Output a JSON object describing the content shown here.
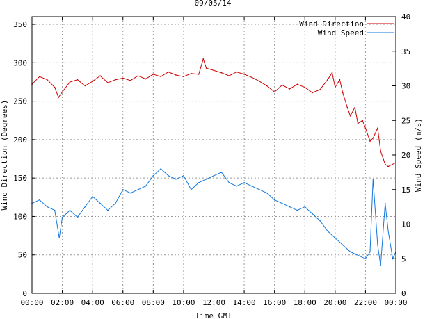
{
  "chart_data": {
    "type": "line",
    "title": "09/05/14",
    "xlabel": "Time GMT",
    "ylabel_left": "Wind Direction (Degrees)",
    "ylabel_right": "Wind Speed (m/s)",
    "xlim": [
      0,
      24
    ],
    "ylim_left": [
      0,
      360
    ],
    "ylim_right": [
      0,
      40
    ],
    "grid": true,
    "legend_position": "top-right",
    "x_ticks": [
      0,
      2,
      4,
      6,
      8,
      10,
      12,
      14,
      16,
      18,
      20,
      22,
      24
    ],
    "x_tick_labels": [
      "00:00",
      "02:00",
      "04:00",
      "06:00",
      "08:00",
      "10:00",
      "12:00",
      "14:00",
      "16:00",
      "18:00",
      "20:00",
      "22:00",
      "00:00"
    ],
    "y_ticks_left": [
      0,
      50,
      100,
      150,
      200,
      250,
      300,
      350
    ],
    "y_ticks_right": [
      0,
      5,
      10,
      15,
      20,
      25,
      30,
      35,
      40
    ],
    "series": [
      {
        "name": "Wind Direction",
        "axis": "left",
        "color": "#cc0000",
        "x": [
          0,
          0.5,
          1,
          1.5,
          1.75,
          2,
          2.5,
          3,
          3.5,
          4,
          4.5,
          5,
          5.5,
          6,
          6.5,
          7,
          7.5,
          8,
          8.5,
          9,
          9.5,
          10,
          10.5,
          11,
          11.3,
          11.5,
          12,
          12.5,
          13,
          13.5,
          14,
          14.5,
          15,
          15.5,
          16,
          16.5,
          17,
          17.5,
          18,
          18.5,
          19,
          19.5,
          19.8,
          20,
          20.3,
          20.5,
          20.8,
          21,
          21.3,
          21.5,
          21.8,
          22,
          22.3,
          22.5,
          22.8,
          23,
          23.3,
          23.5,
          24
        ],
        "values": [
          272,
          282,
          278,
          268,
          255,
          262,
          275,
          278,
          270,
          276,
          283,
          274,
          278,
          280,
          277,
          283,
          279,
          285,
          282,
          288,
          284,
          282,
          286,
          285,
          305,
          293,
          290,
          287,
          283,
          288,
          285,
          281,
          276,
          270,
          262,
          271,
          266,
          272,
          268,
          261,
          265,
          278,
          287,
          268,
          278,
          261,
          242,
          231,
          242,
          221,
          225,
          215,
          198,
          202,
          215,
          185,
          168,
          165,
          170
        ]
      },
      {
        "name": "Wind Speed",
        "axis": "right",
        "color": "#1177dd",
        "x": [
          0,
          0.5,
          1,
          1.5,
          1.8,
          2,
          2.5,
          3,
          3.5,
          4,
          4.5,
          5,
          5.5,
          6,
          6.5,
          7,
          7.5,
          8,
          8.5,
          9,
          9.5,
          10,
          10.5,
          11,
          11.5,
          12,
          12.5,
          13,
          13.5,
          14,
          14.5,
          15,
          15.5,
          16,
          16.5,
          17,
          17.5,
          18,
          18.5,
          19,
          19.5,
          20,
          20.5,
          21,
          21.5,
          22,
          22.3,
          22.5,
          22.8,
          23,
          23.3,
          23.5,
          23.8,
          24
        ],
        "values": [
          13,
          13.5,
          12.5,
          12,
          8,
          11,
          12,
          11,
          12.5,
          14,
          13,
          12,
          13,
          15,
          14.5,
          15,
          15.5,
          17,
          18,
          17,
          16.5,
          17,
          15,
          16,
          16.5,
          17,
          17.5,
          16,
          15.5,
          16,
          15.5,
          15,
          14.5,
          13.5,
          13,
          12.5,
          12,
          12.5,
          11.5,
          10.5,
          9,
          8,
          7,
          6,
          5.5,
          5,
          6,
          16.5,
          7,
          4,
          13,
          9,
          5,
          6
        ]
      }
    ]
  }
}
